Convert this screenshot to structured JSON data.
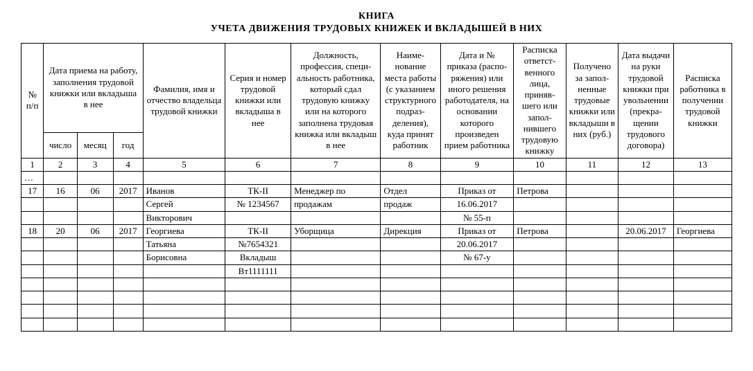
{
  "title_line1": "КНИГА",
  "title_line2": "УЧЕТА ДВИЖЕНИЯ ТРУДОВЫХ КНИЖЕК И ВКЛАДЫШЕЙ В НИХ",
  "head": {
    "c1": "№ п/п",
    "c2_4": "Дата приема на работу, заполнения трудовой книжки или вкладыша в нее",
    "c2": "число",
    "c3": "месяц",
    "c4": "год",
    "c5": "Фамилия, имя и отчество вла­дельца трудовой книжки",
    "c6": "Серия и номер трудо­вой книжки или вкла­дыша в нее",
    "c7": "Должность, профессия, специ­альность работ­ника, который сдал трудовую книжку или на которого запол­нена трудовая книжка или вкладыш в нее",
    "c8": "Наиме­нование места работы (с указанием струк­турного подраз­деления), куда принят работник",
    "c9": "Дата и № приказа (распо­ряжения) или иного решения работодателя, на основании которого произведен прием работ­ника",
    "c10": "Расписка ответст­венного лица, приняв­шего или запол­нившего трудовую книжку",
    "c11": "Полу­чено за запол­ненные трудовые книжки или вкла­дыши в них (руб.)",
    "c12": "Дата выдачи на руки трудовой книжки при уволь­нении (прекра­щении трудового договора)",
    "c13": "Расписка работника в полу­чении трудовой книжки"
  },
  "numrow": {
    "n1": "1",
    "n2": "2",
    "n3": "3",
    "n4": "4",
    "n5": "5",
    "n6": "6",
    "n7": "7",
    "n8": "8",
    "n9": "9",
    "n10": "10",
    "n11": "11",
    "n12": "12",
    "n13": "13"
  },
  "rows": {
    "ellipsis": "…",
    "r0": {
      "c1": "17",
      "c2": "16",
      "c3": "06",
      "c4": "2017",
      "c5": "Иванов",
      "c6": "ТК-II",
      "c7": "Менеджер по",
      "c8": "Отдел",
      "c9": "Приказ от",
      "c10": "Петрова",
      "c11": "",
      "c12": "",
      "c13": ""
    },
    "r1": {
      "c1": "",
      "c2": "",
      "c3": "",
      "c4": "",
      "c5": "Сергей",
      "c6": "№ 1234567",
      "c7": "продажам",
      "c8": "продаж",
      "c9": "16.06.2017",
      "c10": "",
      "c11": "",
      "c12": "",
      "c13": ""
    },
    "r2": {
      "c1": "",
      "c2": "",
      "c3": "",
      "c4": "",
      "c5": "Викторович",
      "c6": "",
      "c7": "",
      "c8": "",
      "c9": "№ 55-п",
      "c10": "",
      "c11": "",
      "c12": "",
      "c13": ""
    },
    "r3": {
      "c1": "18",
      "c2": "20",
      "c3": "06",
      "c4": "2017",
      "c5": "Георгиева",
      "c6": "ТК-II",
      "c7": "Уборщица",
      "c8": "Дирекция",
      "c9": "Приказ от",
      "c10": "Петрова",
      "c11": "",
      "c12": "20.06.2017",
      "c13": "Георгиева"
    },
    "r4": {
      "c1": "",
      "c2": "",
      "c3": "",
      "c4": "",
      "c5": "Татьяна",
      "c6": "№7654321",
      "c7": "",
      "c8": "",
      "c9": "20.06.2017",
      "c10": "",
      "c11": "",
      "c12": "",
      "c13": ""
    },
    "r5": {
      "c1": "",
      "c2": "",
      "c3": "",
      "c4": "",
      "c5": "Борисовна",
      "c6": "Вкладыш",
      "c7": "",
      "c8": "",
      "c9": "№ 67-у",
      "c10": "",
      "c11": "",
      "c12": "",
      "c13": ""
    },
    "r6": {
      "c1": "",
      "c2": "",
      "c3": "",
      "c4": "",
      "c5": "",
      "c6": "Вт1111111",
      "c7": "",
      "c8": "",
      "c9": "",
      "c10": "",
      "c11": "",
      "c12": "",
      "c13": ""
    },
    "r7": {
      "c1": "",
      "c2": "",
      "c3": "",
      "c4": "",
      "c5": "",
      "c6": "",
      "c7": "",
      "c8": "",
      "c9": "",
      "c10": "",
      "c11": "",
      "c12": "",
      "c13": ""
    },
    "r8": {
      "c1": "",
      "c2": "",
      "c3": "",
      "c4": "",
      "c5": "",
      "c6": "",
      "c7": "",
      "c8": "",
      "c9": "",
      "c10": "",
      "c11": "",
      "c12": "",
      "c13": ""
    },
    "r9": {
      "c1": "",
      "c2": "",
      "c3": "",
      "c4": "",
      "c5": "",
      "c6": "",
      "c7": "",
      "c8": "",
      "c9": "",
      "c10": "",
      "c11": "",
      "c12": "",
      "c13": ""
    },
    "r10": {
      "c1": "",
      "c2": "",
      "c3": "",
      "c4": "",
      "c5": "",
      "c6": "",
      "c7": "",
      "c8": "",
      "c9": "",
      "c10": "",
      "c11": "",
      "c12": "",
      "c13": ""
    }
  }
}
